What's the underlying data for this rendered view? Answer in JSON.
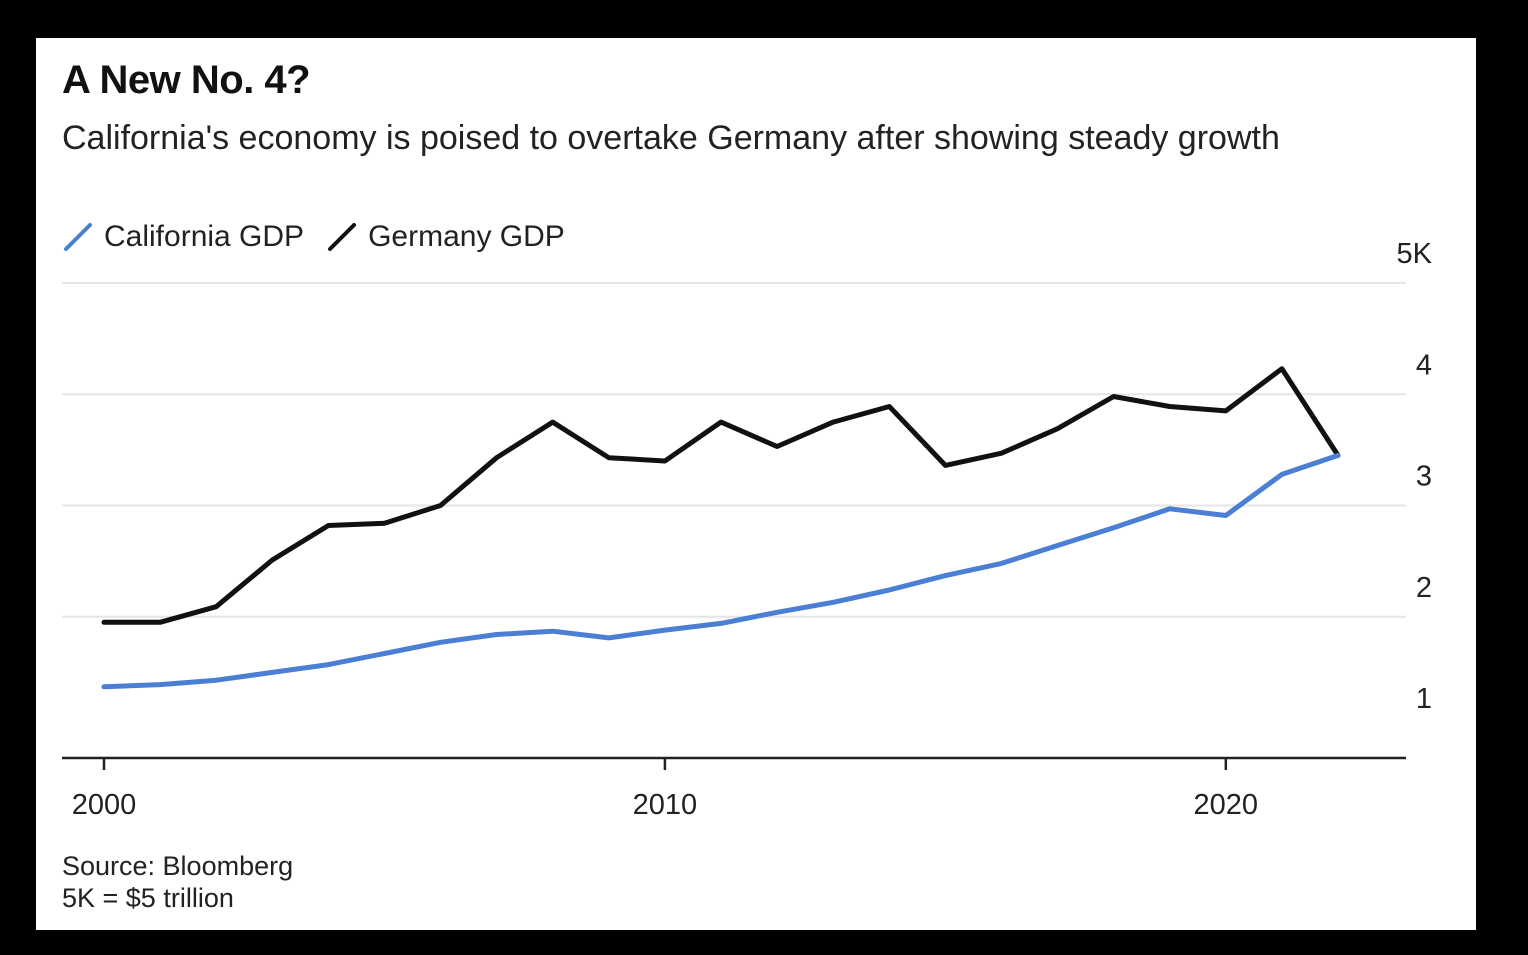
{
  "chart_data": {
    "type": "line",
    "title": "A New No. 4?",
    "subtitle": "California's economy is poised to overtake Germany after showing steady growth",
    "x": [
      2000,
      2001,
      2002,
      2003,
      2004,
      2005,
      2006,
      2007,
      2008,
      2009,
      2010,
      2011,
      2012,
      2013,
      2014,
      2015,
      2016,
      2017,
      2018,
      2019,
      2020,
      2021,
      2022
    ],
    "series": [
      {
        "name": "California GDP",
        "color": "#4a7fd4",
        "values": [
          1.37,
          1.39,
          1.43,
          1.5,
          1.57,
          1.67,
          1.77,
          1.84,
          1.87,
          1.81,
          1.88,
          1.94,
          2.04,
          2.13,
          2.24,
          2.37,
          2.48,
          2.64,
          2.8,
          2.97,
          2.91,
          3.28,
          3.45
        ]
      },
      {
        "name": "Germany GDP",
        "color": "#111111",
        "values": [
          1.95,
          1.95,
          2.09,
          2.51,
          2.82,
          2.84,
          3.0,
          3.43,
          3.75,
          3.43,
          3.4,
          3.75,
          3.53,
          3.75,
          3.89,
          3.36,
          3.47,
          3.69,
          3.98,
          3.89,
          3.85,
          4.23,
          3.45
        ]
      }
    ],
    "y_ticks": [
      {
        "value": 1,
        "label": "1"
      },
      {
        "value": 2,
        "label": "2"
      },
      {
        "value": 3,
        "label": "3"
      },
      {
        "value": 4,
        "label": "4"
      },
      {
        "value": 5,
        "label": "5K"
      }
    ],
    "x_ticks": [
      {
        "value": 2000,
        "label": "2000"
      },
      {
        "value": 2010,
        "label": "2010"
      },
      {
        "value": 2020,
        "label": "2020"
      }
    ],
    "ylim": [
      1,
      5
    ],
    "xlim": [
      2000,
      2022
    ],
    "grid": true,
    "legend_position": "top-left"
  },
  "footer": {
    "source": "Source: Bloomberg",
    "note": "5K = $5 trillion"
  }
}
